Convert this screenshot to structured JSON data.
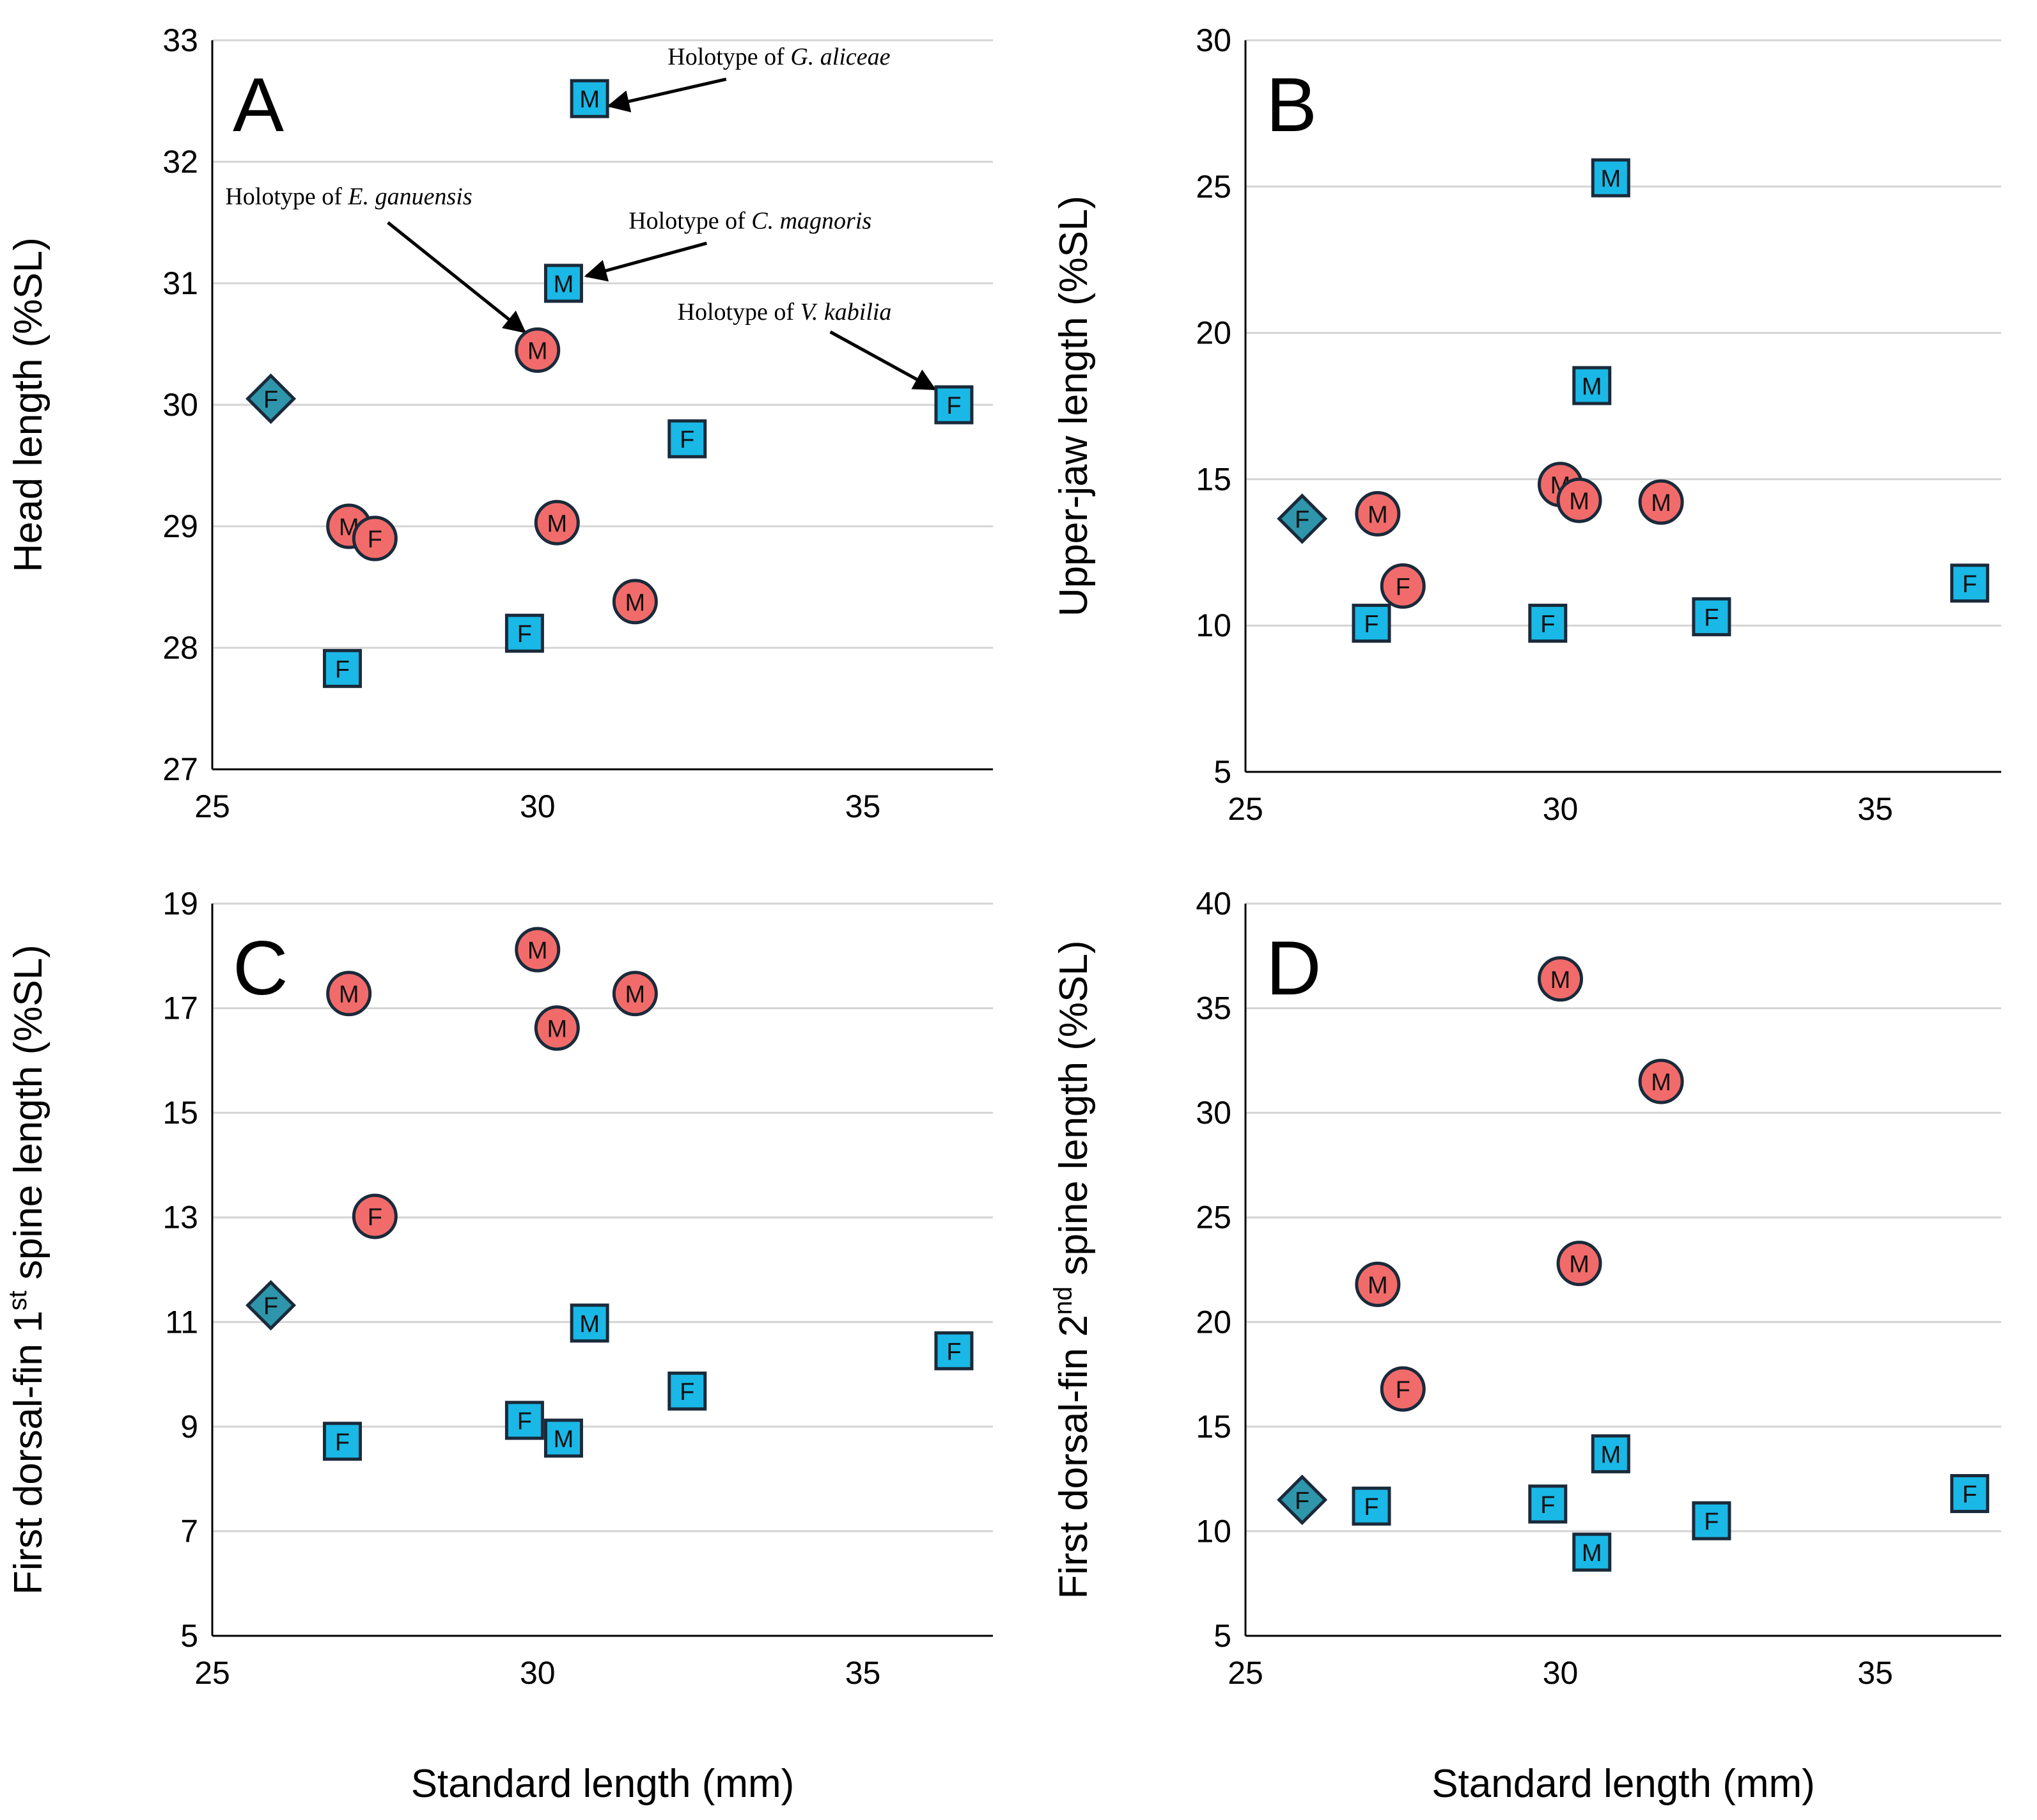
{
  "colors": {
    "square": "#1ab8e6",
    "circle": "#f26b6b",
    "diamond": "#2e95ab",
    "outline": "#1a2a3a",
    "grid": "#d4d4d4"
  },
  "x_axis_title": "Standard length (mm)",
  "chart_data": [
    {
      "type": "scatter",
      "panel": "A",
      "ylabel": "Head length (%SL)",
      "xlim": [
        25,
        37
      ],
      "ylim": [
        27,
        33
      ],
      "xticks": [
        25,
        30,
        35
      ],
      "yticks": [
        27,
        28,
        29,
        30,
        31,
        32,
        33
      ],
      "points": [
        {
          "x": 25.9,
          "y": 30.05,
          "shape": "diamond",
          "label": "F"
        },
        {
          "x": 27.1,
          "y": 29.0,
          "shape": "circle",
          "label": "M"
        },
        {
          "x": 27.5,
          "y": 28.9,
          "shape": "circle",
          "label": "F"
        },
        {
          "x": 30.0,
          "y": 30.45,
          "shape": "circle",
          "label": "M"
        },
        {
          "x": 30.3,
          "y": 29.03,
          "shape": "circle",
          "label": "M"
        },
        {
          "x": 31.5,
          "y": 28.38,
          "shape": "circle",
          "label": "M"
        },
        {
          "x": 27.0,
          "y": 27.83,
          "shape": "square",
          "label": "F"
        },
        {
          "x": 29.8,
          "y": 28.12,
          "shape": "square",
          "label": "F"
        },
        {
          "x": 30.4,
          "y": 31.0,
          "shape": "square",
          "label": "M"
        },
        {
          "x": 30.8,
          "y": 32.52,
          "shape": "square",
          "label": "M"
        },
        {
          "x": 32.3,
          "y": 29.72,
          "shape": "square",
          "label": "F"
        },
        {
          "x": 36.4,
          "y": 30.0,
          "shape": "square",
          "label": "F"
        }
      ],
      "annotations": [
        {
          "prefix": "Holotype of ",
          "species": "G. aliceae",
          "tx": 32.0,
          "ty": 32.8,
          "anchor": "start",
          "ax1": 32.9,
          "ay1": 32.68,
          "ax2": 31.1,
          "ay2": 32.46
        },
        {
          "prefix": "Holotype of ",
          "species": "E. ganuensis",
          "tx": 25.2,
          "ty": 31.65,
          "anchor": "start",
          "ax1": 27.7,
          "ay1": 31.5,
          "ax2": 29.8,
          "ay2": 30.6
        },
        {
          "prefix": "Holotype of ",
          "species": "C. magnoris",
          "tx": 31.4,
          "ty": 31.45,
          "anchor": "start",
          "ax1": 32.6,
          "ay1": 31.33,
          "ax2": 30.75,
          "ay2": 31.06
        },
        {
          "prefix": "Holotype of ",
          "species": "V. kabilia",
          "tx": 32.15,
          "ty": 30.7,
          "anchor": "start",
          "ax1": 34.5,
          "ay1": 30.6,
          "ax2": 36.1,
          "ay2": 30.13
        }
      ]
    },
    {
      "type": "scatter",
      "panel": "B",
      "ylabel": "Upper-jaw length (%SL)",
      "xlim": [
        25,
        37
      ],
      "ylim": [
        5,
        30
      ],
      "xticks": [
        25,
        30,
        35
      ],
      "yticks": [
        5,
        10,
        15,
        20,
        25,
        30
      ],
      "points": [
        {
          "x": 25.9,
          "y": 13.65,
          "shape": "diamond",
          "label": "F"
        },
        {
          "x": 27.1,
          "y": 13.82,
          "shape": "circle",
          "label": "M"
        },
        {
          "x": 27.5,
          "y": 11.35,
          "shape": "circle",
          "label": "F"
        },
        {
          "x": 30.0,
          "y": 14.82,
          "shape": "circle",
          "label": "M"
        },
        {
          "x": 30.3,
          "y": 14.28,
          "shape": "circle",
          "label": "M"
        },
        {
          "x": 31.6,
          "y": 14.22,
          "shape": "circle",
          "label": "M"
        },
        {
          "x": 27.0,
          "y": 10.08,
          "shape": "square",
          "label": "F"
        },
        {
          "x": 29.8,
          "y": 10.08,
          "shape": "square",
          "label": "F"
        },
        {
          "x": 30.5,
          "y": 18.2,
          "shape": "square",
          "label": "M"
        },
        {
          "x": 30.8,
          "y": 25.3,
          "shape": "square",
          "label": "M"
        },
        {
          "x": 32.4,
          "y": 10.3,
          "shape": "square",
          "label": "F"
        },
        {
          "x": 36.5,
          "y": 11.45,
          "shape": "square",
          "label": "F"
        }
      ]
    },
    {
      "type": "scatter",
      "panel": "C",
      "ylabel": "First dorsal-fin 1st spine length (%SL)",
      "ylabel_parts": [
        "First dorsal-fin 1",
        "st",
        " spine length (%SL)"
      ],
      "xlim": [
        25,
        37
      ],
      "ylim": [
        5,
        19
      ],
      "xticks": [
        25,
        30,
        35
      ],
      "yticks": [
        5,
        7,
        9,
        11,
        13,
        15,
        17,
        19
      ],
      "points": [
        {
          "x": 25.9,
          "y": 11.32,
          "shape": "diamond",
          "label": "F"
        },
        {
          "x": 27.1,
          "y": 17.28,
          "shape": "circle",
          "label": "M"
        },
        {
          "x": 27.5,
          "y": 13.02,
          "shape": "circle",
          "label": "F"
        },
        {
          "x": 30.0,
          "y": 18.12,
          "shape": "circle",
          "label": "M"
        },
        {
          "x": 30.3,
          "y": 16.62,
          "shape": "circle",
          "label": "M"
        },
        {
          "x": 31.5,
          "y": 17.28,
          "shape": "circle",
          "label": "M"
        },
        {
          "x": 27.0,
          "y": 8.72,
          "shape": "square",
          "label": "F"
        },
        {
          "x": 29.8,
          "y": 9.12,
          "shape": "square",
          "label": "F"
        },
        {
          "x": 30.4,
          "y": 8.78,
          "shape": "square",
          "label": "M"
        },
        {
          "x": 30.8,
          "y": 10.98,
          "shape": "square",
          "label": "M"
        },
        {
          "x": 32.3,
          "y": 9.68,
          "shape": "square",
          "label": "F"
        },
        {
          "x": 36.4,
          "y": 10.45,
          "shape": "square",
          "label": "F"
        }
      ]
    },
    {
      "type": "scatter",
      "panel": "D",
      "ylabel": "First dorsal-fin 2nd spine length (%SL)",
      "ylabel_parts": [
        "First dorsal-fin 2",
        "nd",
        " spine length (%SL)"
      ],
      "xlim": [
        25,
        37
      ],
      "ylim": [
        5,
        40
      ],
      "xticks": [
        25,
        30,
        35
      ],
      "yticks": [
        5,
        10,
        15,
        20,
        25,
        30,
        35,
        40
      ],
      "points": [
        {
          "x": 25.9,
          "y": 11.5,
          "shape": "diamond",
          "label": "F"
        },
        {
          "x": 27.1,
          "y": 21.8,
          "shape": "circle",
          "label": "M"
        },
        {
          "x": 27.5,
          "y": 16.8,
          "shape": "circle",
          "label": "F"
        },
        {
          "x": 30.0,
          "y": 36.4,
          "shape": "circle",
          "label": "M"
        },
        {
          "x": 30.3,
          "y": 22.8,
          "shape": "circle",
          "label": "M"
        },
        {
          "x": 31.6,
          "y": 31.5,
          "shape": "circle",
          "label": "M"
        },
        {
          "x": 27.0,
          "y": 11.2,
          "shape": "square",
          "label": "F"
        },
        {
          "x": 29.8,
          "y": 11.3,
          "shape": "square",
          "label": "F"
        },
        {
          "x": 30.5,
          "y": 9.0,
          "shape": "square",
          "label": "M"
        },
        {
          "x": 30.8,
          "y": 13.7,
          "shape": "square",
          "label": "M"
        },
        {
          "x": 32.4,
          "y": 10.5,
          "shape": "square",
          "label": "F"
        },
        {
          "x": 36.5,
          "y": 11.8,
          "shape": "square",
          "label": "F"
        }
      ]
    }
  ]
}
